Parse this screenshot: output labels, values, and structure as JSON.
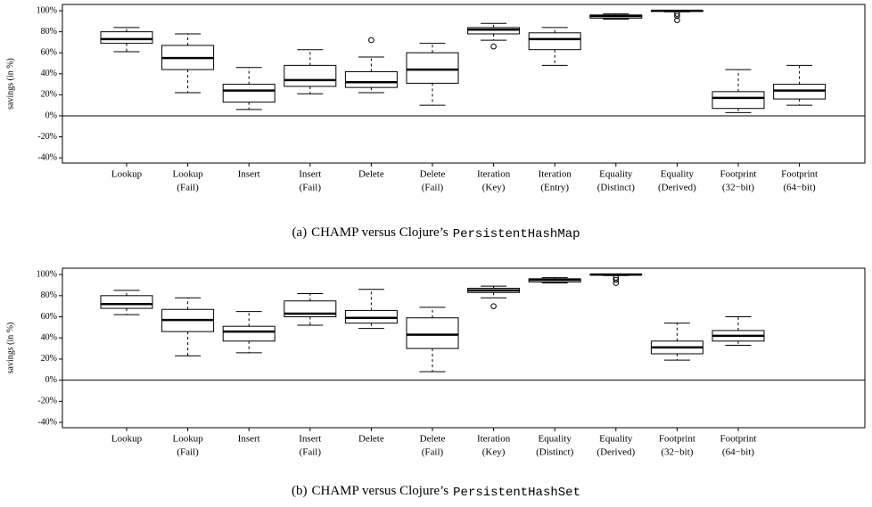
{
  "chart_data": [
    {
      "type": "box",
      "caption_label": "(a)",
      "caption_text": "CHAMP versus Clojure’s",
      "caption_code": "PersistentHashMap",
      "ylabel": "savings (in %)",
      "ylim": [
        -45,
        106
      ],
      "yticks": [
        {
          "value": -40,
          "label": "-40%"
        },
        {
          "value": -20,
          "label": "-20%"
        },
        {
          "value": 0,
          "label": "0%"
        },
        {
          "value": 20,
          "label": "20%"
        },
        {
          "value": 40,
          "label": "40%"
        },
        {
          "value": 60,
          "label": "60%"
        },
        {
          "value": 80,
          "label": "80%"
        },
        {
          "value": 100,
          "label": "100%"
        }
      ],
      "hline": 0,
      "categories": [
        [
          "Lookup"
        ],
        [
          "Lookup",
          "(Fail)"
        ],
        [
          "Insert"
        ],
        [
          "Insert",
          "(Fail)"
        ],
        [
          "Delete"
        ],
        [
          "Delete",
          "(Fail)"
        ],
        [
          "Iteration",
          "(Key)"
        ],
        [
          "Iteration",
          "(Entry)"
        ],
        [
          "Equality",
          "(Distinct)"
        ],
        [
          "Equality",
          "(Derived)"
        ],
        [
          "Footprint",
          "(32−bit)"
        ],
        [
          "Footprint",
          "(64−bit)"
        ]
      ],
      "boxes": [
        {
          "low": 61,
          "q1": 69,
          "median": 73,
          "q3": 80,
          "high": 84,
          "outliers": []
        },
        {
          "low": 22,
          "q1": 44,
          "median": 55,
          "q3": 67,
          "high": 78,
          "outliers": []
        },
        {
          "low": 6,
          "q1": 13,
          "median": 24,
          "q3": 30,
          "high": 46,
          "outliers": []
        },
        {
          "low": 21,
          "q1": 28,
          "median": 34,
          "q3": 48,
          "high": 63,
          "outliers": []
        },
        {
          "low": 22,
          "q1": 27,
          "median": 32,
          "q3": 42,
          "high": 56,
          "outliers": [
            72
          ]
        },
        {
          "low": 10,
          "q1": 31,
          "median": 44,
          "q3": 60,
          "high": 69,
          "outliers": []
        },
        {
          "low": 72,
          "q1": 78,
          "median": 82,
          "q3": 84,
          "high": 88,
          "outliers": [
            66
          ]
        },
        {
          "low": 48,
          "q1": 63,
          "median": 73,
          "q3": 79,
          "high": 84,
          "outliers": []
        },
        {
          "low": 92,
          "q1": 93,
          "median": 95,
          "q3": 96,
          "high": 97,
          "outliers": []
        },
        {
          "low": 99,
          "q1": 99.5,
          "median": 100,
          "q3": 100,
          "high": 100,
          "outliers": [
            97,
            95,
            91
          ]
        },
        {
          "low": 3,
          "q1": 7,
          "median": 17,
          "q3": 23,
          "high": 44,
          "outliers": []
        },
        {
          "low": 10,
          "q1": 16,
          "median": 24,
          "q3": 30,
          "high": 48,
          "outliers": []
        }
      ]
    },
    {
      "type": "box",
      "caption_label": "(b)",
      "caption_text": "CHAMP versus Clojure’s",
      "caption_code": "PersistentHashSet",
      "ylabel": "savings (in %)",
      "ylim": [
        -45,
        106
      ],
      "yticks": [
        {
          "value": -40,
          "label": "-40%"
        },
        {
          "value": -20,
          "label": "-20%"
        },
        {
          "value": 0,
          "label": "0%"
        },
        {
          "value": 20,
          "label": "20%"
        },
        {
          "value": 40,
          "label": "40%"
        },
        {
          "value": 60,
          "label": "60%"
        },
        {
          "value": 80,
          "label": "80%"
        },
        {
          "value": 100,
          "label": "100%"
        }
      ],
      "hline": 0,
      "categories": [
        [
          "Lookup"
        ],
        [
          "Lookup",
          "(Fail)"
        ],
        [
          "Insert"
        ],
        [
          "Insert",
          "(Fail)"
        ],
        [
          "Delete"
        ],
        [
          "Delete",
          "(Fail)"
        ],
        [
          "Iteration",
          "(Key)"
        ],
        [
          "Equality",
          "(Distinct)"
        ],
        [
          "Equality",
          "(Derived)"
        ],
        [
          "Footprint",
          "(32−bit)"
        ],
        [
          "Footprint",
          "(64−bit)"
        ]
      ],
      "boxes": [
        {
          "low": 62,
          "q1": 68,
          "median": 72,
          "q3": 80,
          "high": 85,
          "outliers": []
        },
        {
          "low": 23,
          "q1": 46,
          "median": 57,
          "q3": 67,
          "high": 78,
          "outliers": []
        },
        {
          "low": 26,
          "q1": 37,
          "median": 46,
          "q3": 51,
          "high": 65,
          "outliers": []
        },
        {
          "low": 52,
          "q1": 60,
          "median": 63,
          "q3": 75,
          "high": 82,
          "outliers": []
        },
        {
          "low": 49,
          "q1": 54,
          "median": 59,
          "q3": 66,
          "high": 86,
          "outliers": []
        },
        {
          "low": 8,
          "q1": 30,
          "median": 43,
          "q3": 59,
          "high": 69,
          "outliers": []
        },
        {
          "low": 78,
          "q1": 83,
          "median": 85,
          "q3": 87,
          "high": 89,
          "outliers": [
            70
          ]
        },
        {
          "low": 92,
          "q1": 93,
          "median": 95,
          "q3": 96,
          "high": 97,
          "outliers": []
        },
        {
          "low": 99,
          "q1": 99.5,
          "median": 100,
          "q3": 100,
          "high": 100,
          "outliers": [
            97,
            95,
            92
          ]
        },
        {
          "low": 19,
          "q1": 25,
          "median": 31,
          "q3": 37,
          "high": 54,
          "outliers": []
        },
        {
          "low": 33,
          "q1": 37,
          "median": 42,
          "q3": 47,
          "high": 60,
          "outliers": []
        }
      ]
    }
  ]
}
